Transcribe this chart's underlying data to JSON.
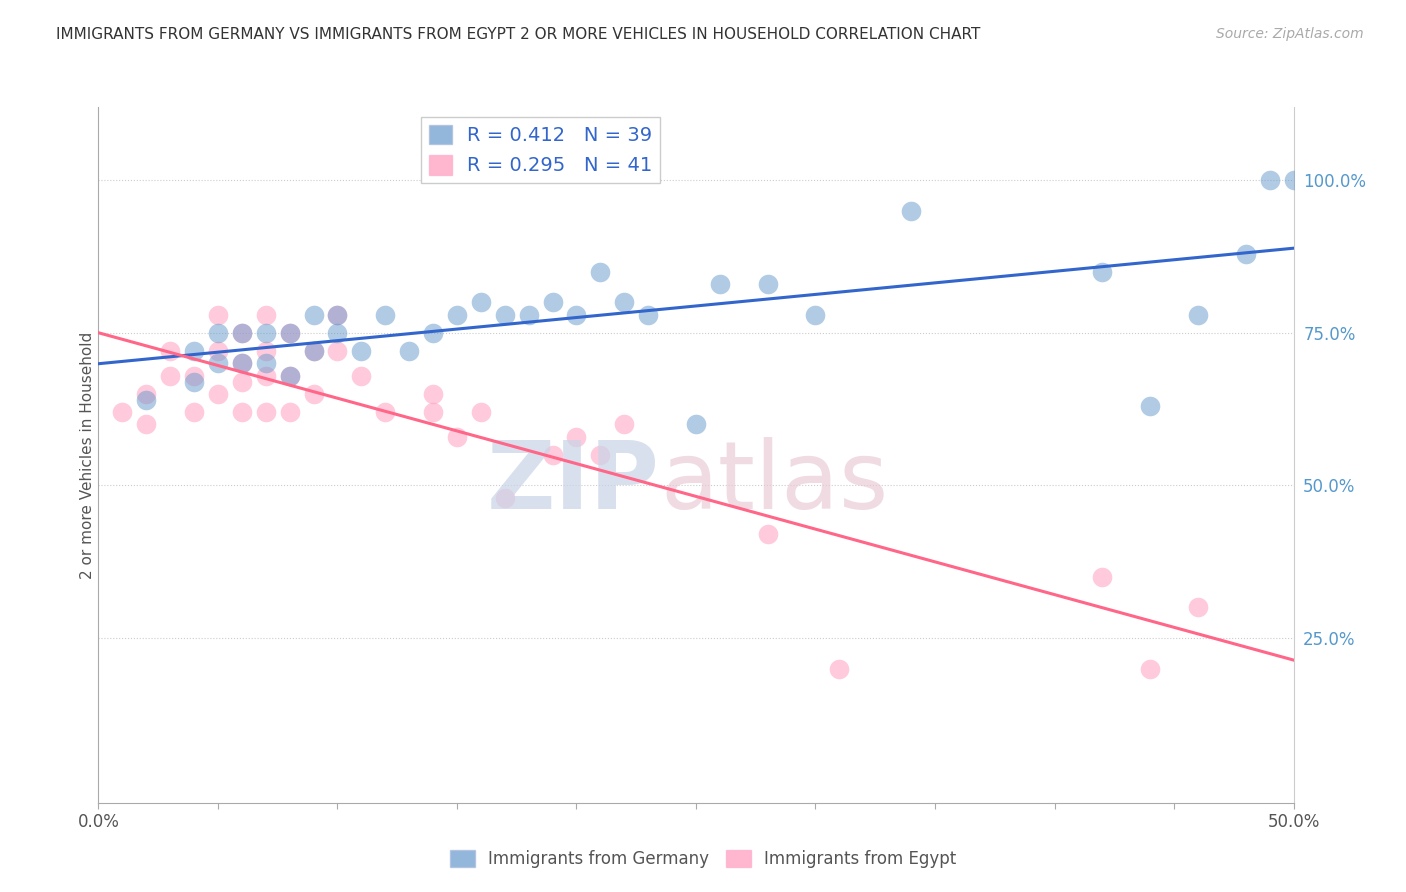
{
  "title": "IMMIGRANTS FROM GERMANY VS IMMIGRANTS FROM EGYPT 2 OR MORE VEHICLES IN HOUSEHOLD CORRELATION CHART",
  "source": "Source: ZipAtlas.com",
  "ylabel": "2 or more Vehicles in Household",
  "germany_R": 0.412,
  "germany_N": 39,
  "egypt_R": 0.295,
  "egypt_N": 41,
  "germany_color": "#6699CC",
  "egypt_color": "#FF99BB",
  "germany_line_color": "#3366CC",
  "egypt_line_color": "#FF6688",
  "legend_label_germany": "Immigrants from Germany",
  "legend_label_egypt": "Immigrants from Egypt",
  "xlim": [
    0.0,
    0.5
  ],
  "ylim": [
    -0.02,
    1.12
  ],
  "germany_x": [
    0.02,
    0.04,
    0.04,
    0.05,
    0.05,
    0.06,
    0.06,
    0.07,
    0.07,
    0.08,
    0.08,
    0.09,
    0.09,
    0.1,
    0.1,
    0.11,
    0.12,
    0.13,
    0.14,
    0.15,
    0.16,
    0.17,
    0.18,
    0.19,
    0.2,
    0.21,
    0.22,
    0.23,
    0.25,
    0.26,
    0.28,
    0.3,
    0.34,
    0.42,
    0.44,
    0.46,
    0.48,
    0.49,
    0.5
  ],
  "germany_y": [
    0.64,
    0.67,
    0.72,
    0.7,
    0.75,
    0.7,
    0.75,
    0.7,
    0.75,
    0.68,
    0.75,
    0.72,
    0.78,
    0.75,
    0.78,
    0.72,
    0.78,
    0.72,
    0.75,
    0.78,
    0.8,
    0.78,
    0.78,
    0.8,
    0.78,
    0.85,
    0.8,
    0.78,
    0.6,
    0.83,
    0.83,
    0.78,
    0.95,
    0.85,
    0.63,
    0.78,
    0.88,
    1.0,
    1.0
  ],
  "egypt_x": [
    0.01,
    0.02,
    0.02,
    0.03,
    0.03,
    0.04,
    0.04,
    0.05,
    0.05,
    0.05,
    0.06,
    0.06,
    0.06,
    0.06,
    0.07,
    0.07,
    0.07,
    0.07,
    0.08,
    0.08,
    0.08,
    0.09,
    0.09,
    0.1,
    0.1,
    0.11,
    0.12,
    0.14,
    0.14,
    0.15,
    0.16,
    0.17,
    0.19,
    0.2,
    0.21,
    0.22,
    0.28,
    0.31,
    0.42,
    0.44,
    0.46
  ],
  "egypt_y": [
    0.62,
    0.65,
    0.6,
    0.68,
    0.72,
    0.62,
    0.68,
    0.78,
    0.65,
    0.72,
    0.75,
    0.7,
    0.67,
    0.62,
    0.78,
    0.72,
    0.68,
    0.62,
    0.75,
    0.68,
    0.62,
    0.72,
    0.65,
    0.78,
    0.72,
    0.68,
    0.62,
    0.65,
    0.62,
    0.58,
    0.62,
    0.48,
    0.55,
    0.58,
    0.55,
    0.6,
    0.42,
    0.2,
    0.35,
    0.2,
    0.3
  ]
}
